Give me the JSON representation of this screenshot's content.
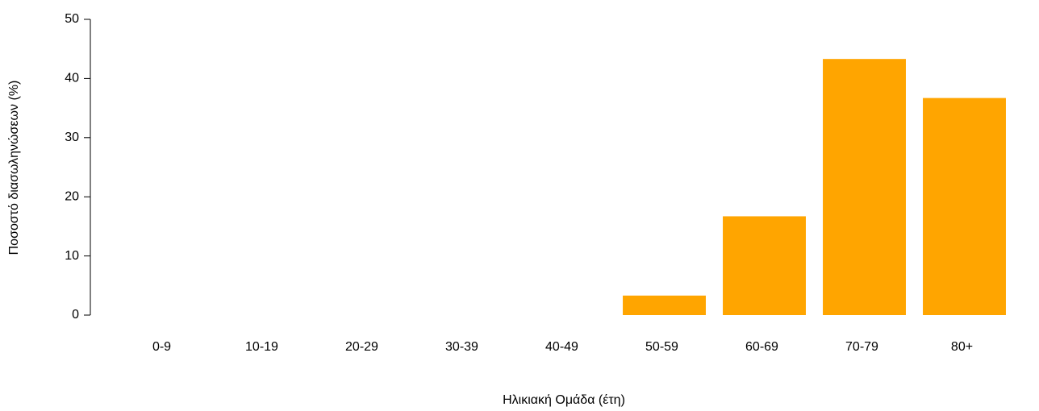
{
  "chart_data": {
    "type": "bar",
    "x_label": "Ηλικιακή Ομάδα (έτη)",
    "y_label": "Ποσοστό διασωληνώσεων (%)",
    "categories": [
      "0-9",
      "10-19",
      "20-29",
      "30-39",
      "40-49",
      "50-59",
      "60-69",
      "70-79",
      "80+"
    ],
    "values": [
      0,
      0,
      0,
      0,
      0,
      3.3,
      16.7,
      43.3,
      36.7
    ],
    "color": "#ffa500",
    "ylim": [
      0,
      50
    ],
    "yticks": [
      0,
      10,
      20,
      30,
      40,
      50
    ],
    "grid": false
  }
}
